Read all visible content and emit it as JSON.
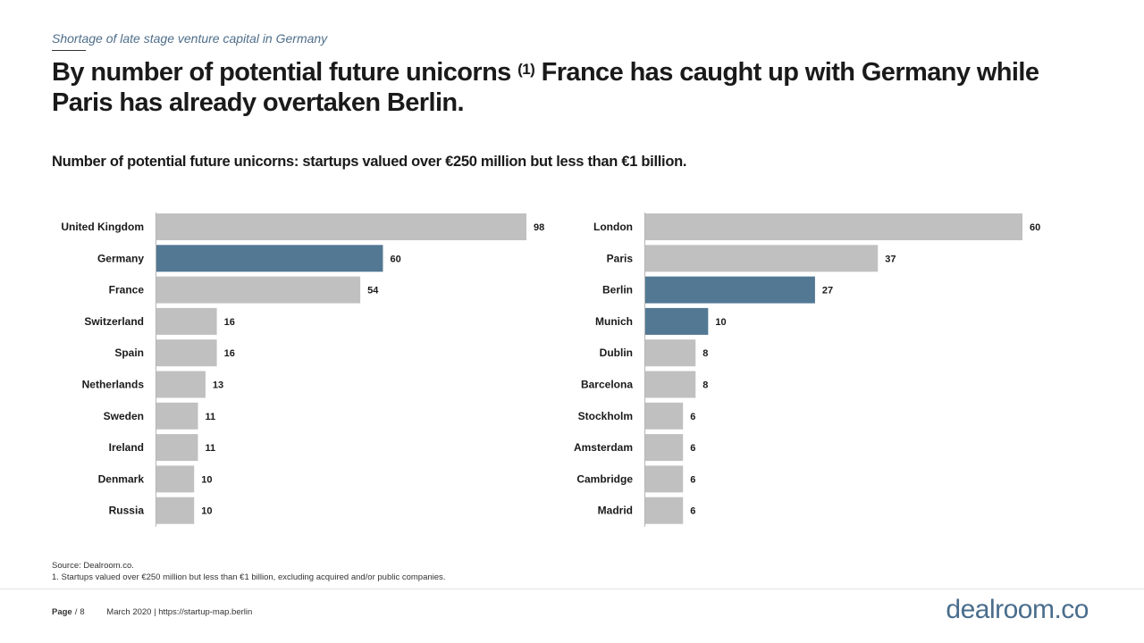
{
  "header": {
    "kicker": "Shortage of late stage venture capital in Germany",
    "title_part1": "By number of potential future unicorns ",
    "title_sup": "(1)",
    "title_part2": " France has caught up with Germany while Paris has already overtaken Berlin.",
    "subtitle": "Number of potential future unicorns: startups valued over €250 million but less than €1 billion."
  },
  "colors": {
    "highlight": "#527894",
    "default": "#c0c0c0"
  },
  "chart_data": [
    {
      "type": "bar",
      "orientation": "horizontal",
      "categories": [
        "United Kingdom",
        "Germany",
        "France",
        "Switzerland",
        "Spain",
        "Netherlands",
        "Sweden",
        "Ireland",
        "Denmark",
        "Russia"
      ],
      "values": [
        98,
        60,
        54,
        16,
        16,
        13,
        11,
        11,
        10,
        10
      ],
      "highlighted": [
        "Germany"
      ],
      "xlim": [
        0,
        98
      ],
      "data_labels": true
    },
    {
      "type": "bar",
      "orientation": "horizontal",
      "categories": [
        "London",
        "Paris",
        "Berlin",
        "Munich",
        "Dublin",
        "Barcelona",
        "Stockholm",
        "Amsterdam",
        "Cambridge",
        "Madrid"
      ],
      "values": [
        60,
        37,
        27,
        10,
        8,
        8,
        6,
        6,
        6,
        6
      ],
      "highlighted": [
        "Berlin",
        "Munich"
      ],
      "xlim": [
        0,
        60
      ],
      "data_labels": true
    }
  ],
  "notes": {
    "source": "Source: Dealroom.co.",
    "footnote": "1. Startups valued over €250 million but less than €1 billion, excluding acquired and/or public companies."
  },
  "footer": {
    "page_label": "Page",
    "separator": "/",
    "page_number": "8",
    "date_url": "March 2020 | https://startup-map.berlin"
  },
  "logo": {
    "main": "dealroom",
    "suffix": ".co"
  }
}
